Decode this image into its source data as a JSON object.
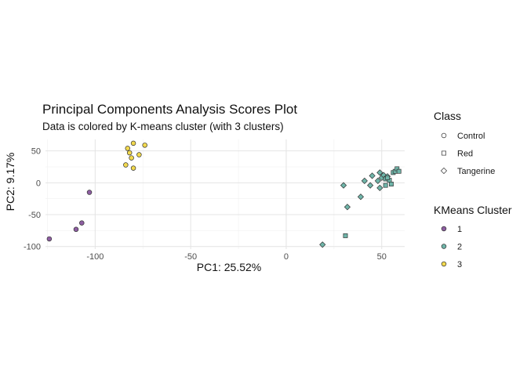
{
  "chart_data": {
    "type": "scatter",
    "title": "Principal Components Analysis Scores Plot",
    "subtitle": "Data is colored by K-means cluster (with 3 clusters)",
    "xlabel": "PC1: 25.52%",
    "ylabel": "PC2: 9.17%",
    "xlim": [
      -126,
      62
    ],
    "ylim": [
      -104,
      68
    ],
    "x_ticks": [
      -100,
      -50,
      0,
      50
    ],
    "y_ticks": [
      -100,
      -50,
      0,
      50
    ],
    "grid": true,
    "legend_position": "right",
    "shape_legend": {
      "title": "Class",
      "entries": [
        {
          "label": "Control",
          "shape": "circle"
        },
        {
          "label": "Red",
          "shape": "square"
        },
        {
          "label": "Tangerine",
          "shape": "diamond"
        }
      ]
    },
    "color_legend": {
      "title": "KMeans Cluster",
      "entries": [
        {
          "label": "1",
          "color": "#8e5ea2"
        },
        {
          "label": "2",
          "color": "#6fb5a9"
        },
        {
          "label": "3",
          "color": "#f2d94e"
        }
      ]
    },
    "points": [
      {
        "x": -124,
        "y": -88,
        "cluster": 1,
        "shape": "circle"
      },
      {
        "x": -110,
        "y": -73,
        "cluster": 1,
        "shape": "circle"
      },
      {
        "x": -107,
        "y": -63,
        "cluster": 1,
        "shape": "circle"
      },
      {
        "x": -103,
        "y": -15,
        "cluster": 1,
        "shape": "circle"
      },
      {
        "x": -83,
        "y": 54,
        "cluster": 3,
        "shape": "circle"
      },
      {
        "x": -80,
        "y": 62,
        "cluster": 3,
        "shape": "circle"
      },
      {
        "x": -74,
        "y": 59,
        "cluster": 3,
        "shape": "circle"
      },
      {
        "x": -82,
        "y": 47,
        "cluster": 3,
        "shape": "circle"
      },
      {
        "x": -77,
        "y": 44,
        "cluster": 3,
        "shape": "circle"
      },
      {
        "x": -81,
        "y": 39,
        "cluster": 3,
        "shape": "circle"
      },
      {
        "x": -84,
        "y": 28,
        "cluster": 3,
        "shape": "circle"
      },
      {
        "x": -80,
        "y": 23,
        "cluster": 3,
        "shape": "circle"
      },
      {
        "x": 19,
        "y": -97,
        "cluster": 2,
        "shape": "diamond"
      },
      {
        "x": 31,
        "y": -83,
        "cluster": 2,
        "shape": "square"
      },
      {
        "x": 32,
        "y": -38,
        "cluster": 2,
        "shape": "diamond"
      },
      {
        "x": 39,
        "y": -22,
        "cluster": 2,
        "shape": "diamond"
      },
      {
        "x": 30,
        "y": -4,
        "cluster": 2,
        "shape": "diamond"
      },
      {
        "x": 41,
        "y": 3,
        "cluster": 2,
        "shape": "diamond"
      },
      {
        "x": 44,
        "y": -4,
        "cluster": 2,
        "shape": "diamond"
      },
      {
        "x": 45,
        "y": 11,
        "cluster": 2,
        "shape": "diamond"
      },
      {
        "x": 48,
        "y": 3,
        "cluster": 2,
        "shape": "diamond"
      },
      {
        "x": 49,
        "y": -8,
        "cluster": 2,
        "shape": "diamond"
      },
      {
        "x": 49,
        "y": 16,
        "cluster": 2,
        "shape": "diamond"
      },
      {
        "x": 50,
        "y": 8,
        "cluster": 2,
        "shape": "diamond"
      },
      {
        "x": 51,
        "y": 12,
        "cluster": 2,
        "shape": "diamond"
      },
      {
        "x": 52,
        "y": 6,
        "cluster": 2,
        "shape": "square"
      },
      {
        "x": 53,
        "y": 10,
        "cluster": 2,
        "shape": "diamond"
      },
      {
        "x": 54,
        "y": 4,
        "cluster": 2,
        "shape": "square"
      },
      {
        "x": 55,
        "y": -2,
        "cluster": 2,
        "shape": "square"
      },
      {
        "x": 52,
        "y": -4,
        "cluster": 2,
        "shape": "square"
      },
      {
        "x": 56,
        "y": 16,
        "cluster": 2,
        "shape": "square"
      },
      {
        "x": 57,
        "y": 18,
        "cluster": 2,
        "shape": "square"
      },
      {
        "x": 58,
        "y": 22,
        "cluster": 2,
        "shape": "square"
      },
      {
        "x": 59,
        "y": 18,
        "cluster": 2,
        "shape": "square"
      },
      {
        "x": 53,
        "y": 8,
        "cluster": 2,
        "shape": "square"
      }
    ]
  }
}
